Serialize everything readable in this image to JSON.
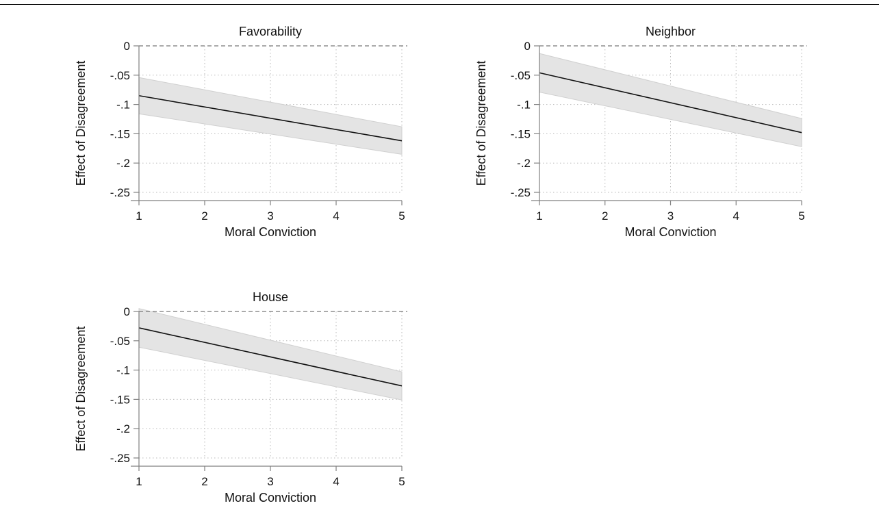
{
  "chart_data": [
    {
      "type": "line",
      "title": "Favorability",
      "xlabel": "Moral Conviction",
      "ylabel": "Effect of Disagreement",
      "xlim": [
        1,
        5
      ],
      "ylim": [
        -0.25,
        0
      ],
      "x_ticks": [
        1,
        2,
        3,
        4,
        5
      ],
      "x_tick_labels": [
        "1",
        "2",
        "3",
        "4",
        "5"
      ],
      "y_ticks": [
        0,
        -0.05,
        -0.1,
        -0.15,
        -0.2,
        -0.25
      ],
      "y_tick_labels": [
        "0",
        "-.05",
        "-.1",
        "-.15",
        "-.2",
        "-.25"
      ],
      "reference_line": 0,
      "grid": true,
      "series": [
        {
          "x": [
            1,
            5
          ],
          "estimate": [
            -0.085,
            -0.162
          ],
          "ci_lower": [
            -0.116,
            -0.185
          ],
          "ci_upper": [
            -0.054,
            -0.138
          ]
        }
      ]
    },
    {
      "type": "line",
      "title": "Neighbor",
      "xlabel": "Moral Conviction",
      "ylabel": "Effect of Disagreement",
      "xlim": [
        1,
        5
      ],
      "ylim": [
        -0.25,
        0
      ],
      "x_ticks": [
        1,
        2,
        3,
        4,
        5
      ],
      "x_tick_labels": [
        "1",
        "2",
        "3",
        "4",
        "5"
      ],
      "y_ticks": [
        0,
        -0.05,
        -0.1,
        -0.15,
        -0.2,
        -0.25
      ],
      "y_tick_labels": [
        "0",
        "-.05",
        "-.1",
        "-.15",
        "-.2",
        "-.25"
      ],
      "reference_line": 0,
      "grid": true,
      "series": [
        {
          "x": [
            1,
            5
          ],
          "estimate": [
            -0.046,
            -0.148
          ],
          "ci_lower": [
            -0.079,
            -0.172
          ],
          "ci_upper": [
            -0.013,
            -0.124
          ]
        }
      ]
    },
    {
      "type": "line",
      "title": "House",
      "xlabel": "Moral Conviction",
      "ylabel": "Effect of Disagreement",
      "xlim": [
        1,
        5
      ],
      "ylim": [
        -0.25,
        0
      ],
      "x_ticks": [
        1,
        2,
        3,
        4,
        5
      ],
      "x_tick_labels": [
        "1",
        "2",
        "3",
        "4",
        "5"
      ],
      "y_ticks": [
        0,
        -0.05,
        -0.1,
        -0.15,
        -0.2,
        -0.25
      ],
      "y_tick_labels": [
        "0",
        "-.05",
        "-.1",
        "-.15",
        "-.2",
        "-.25"
      ],
      "reference_line": 0,
      "grid": true,
      "series": [
        {
          "x": [
            1,
            5
          ],
          "estimate": [
            -0.028,
            -0.127
          ],
          "ci_lower": [
            -0.061,
            -0.151
          ],
          "ci_upper": [
            0.005,
            -0.103
          ]
        }
      ]
    }
  ],
  "colors": {
    "line": "#111111",
    "ci_band": "#e4e4e4",
    "ci_edge": "#d0d0d0",
    "axis": "#808080",
    "grid": "#b8b8b8",
    "reference": "#777777"
  }
}
